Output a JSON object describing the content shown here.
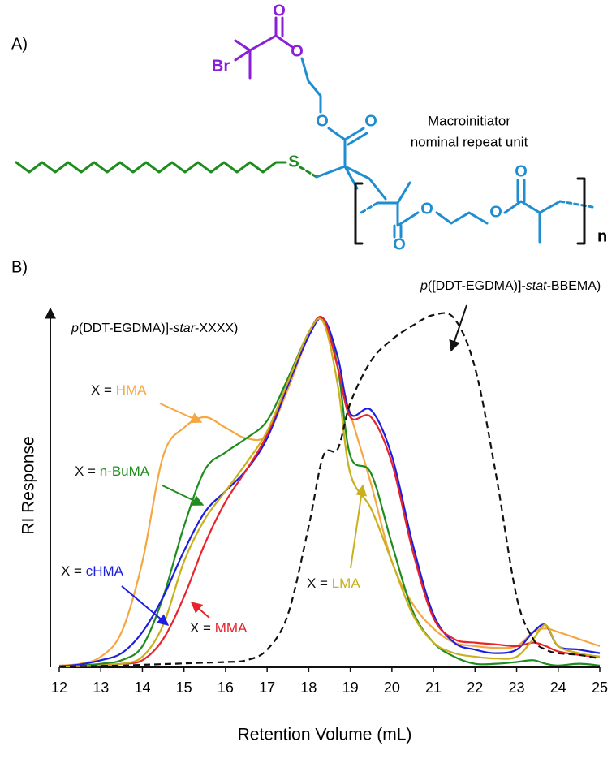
{
  "structure": {
    "panel_label": "A)",
    "atoms": [
      "O",
      "O",
      "Br",
      "O",
      "O",
      "S",
      "O",
      "O",
      "O",
      "O"
    ],
    "repeat_subscript": "n",
    "caption": [
      "Macroinitiator",
      "nominal repeat unit"
    ]
  },
  "chart_data": {
    "type": "line",
    "panel_label": "B)",
    "x_label": "Retention Volume (mL)",
    "y_label": "RI Response",
    "label_prefix": "X = ",
    "annotations": [
      [
        "p",
        "(DDT-EGDMA)]-",
        "star",
        "-XXXX)"
      ],
      [
        "p",
        "([DDT-EGDMA)]-",
        "stat",
        "-BBEMA)"
      ]
    ],
    "x": [
      12,
      12.5,
      13,
      13.5,
      14,
      14.5,
      15,
      15.5,
      16,
      16.5,
      17,
      17.5,
      18,
      18.35,
      18.7,
      19,
      19.5,
      20,
      20.5,
      21,
      21.5,
      22,
      22.5,
      23,
      23.4,
      23.7,
      24,
      24.5,
      25
    ],
    "xlim": [
      12,
      25
    ],
    "xticks": [
      12,
      13,
      14,
      15,
      16,
      17,
      18,
      19,
      20,
      21,
      22,
      23,
      24,
      25
    ],
    "ylim": [
      0,
      1.05
    ],
    "series": [
      {
        "name": "HMA",
        "color": "#f5a742",
        "values": [
          0.005,
          0.01,
          0.03,
          0.1,
          0.3,
          0.6,
          0.68,
          0.71,
          0.68,
          0.65,
          0.66,
          0.79,
          0.94,
          0.99,
          0.85,
          0.72,
          0.52,
          0.3,
          0.18,
          0.11,
          0.07,
          0.06,
          0.055,
          0.06,
          0.1,
          0.11,
          0.1,
          0.08,
          0.06
        ]
      },
      {
        "name": "n-BuMA",
        "color": "#1e8c1e",
        "values": [
          0.002,
          0.005,
          0.01,
          0.02,
          0.06,
          0.2,
          0.4,
          0.56,
          0.61,
          0.65,
          0.7,
          0.82,
          0.95,
          0.99,
          0.85,
          0.6,
          0.55,
          0.35,
          0.16,
          0.07,
          0.03,
          0.01,
          0.01,
          0.015,
          0.02,
          0.01,
          0.005,
          0.01,
          0.005
        ]
      },
      {
        "name": "cHMA",
        "color": "#1e1ee0",
        "values": [
          0.003,
          0.008,
          0.02,
          0.04,
          0.1,
          0.2,
          0.33,
          0.44,
          0.5,
          0.56,
          0.65,
          0.8,
          0.94,
          0.99,
          0.88,
          0.72,
          0.73,
          0.6,
          0.35,
          0.15,
          0.07,
          0.05,
          0.04,
          0.05,
          0.1,
          0.12,
          0.06,
          0.05,
          0.04
        ]
      },
      {
        "name": "MMA",
        "color": "#e8232a",
        "values": [
          0.002,
          0.003,
          0.005,
          0.01,
          0.02,
          0.08,
          0.2,
          0.35,
          0.47,
          0.56,
          0.66,
          0.81,
          0.95,
          0.99,
          0.85,
          0.71,
          0.71,
          0.58,
          0.33,
          0.14,
          0.08,
          0.07,
          0.065,
          0.06,
          0.07,
          0.06,
          0.045,
          0.035,
          0.03
        ]
      },
      {
        "name": "LMA",
        "color": "#c9b01c",
        "values": [
          0.002,
          0.003,
          0.005,
          0.01,
          0.03,
          0.12,
          0.3,
          0.42,
          0.5,
          0.58,
          0.67,
          0.81,
          0.95,
          0.98,
          0.8,
          0.55,
          0.45,
          0.3,
          0.15,
          0.07,
          0.04,
          0.03,
          0.025,
          0.03,
          0.08,
          0.12,
          0.06,
          0.04,
          0.03
        ]
      },
      {
        "color": "#111111",
        "dashed": true,
        "values": [
          0.002,
          0.003,
          0.004,
          0.005,
          0.007,
          0.009,
          0.011,
          0.013,
          0.015,
          0.02,
          0.05,
          0.15,
          0.4,
          0.6,
          0.62,
          0.75,
          0.87,
          0.93,
          0.97,
          1.0,
          0.99,
          0.85,
          0.55,
          0.2,
          0.08,
          0.05,
          0.04,
          0.035,
          0.025
        ]
      }
    ]
  }
}
